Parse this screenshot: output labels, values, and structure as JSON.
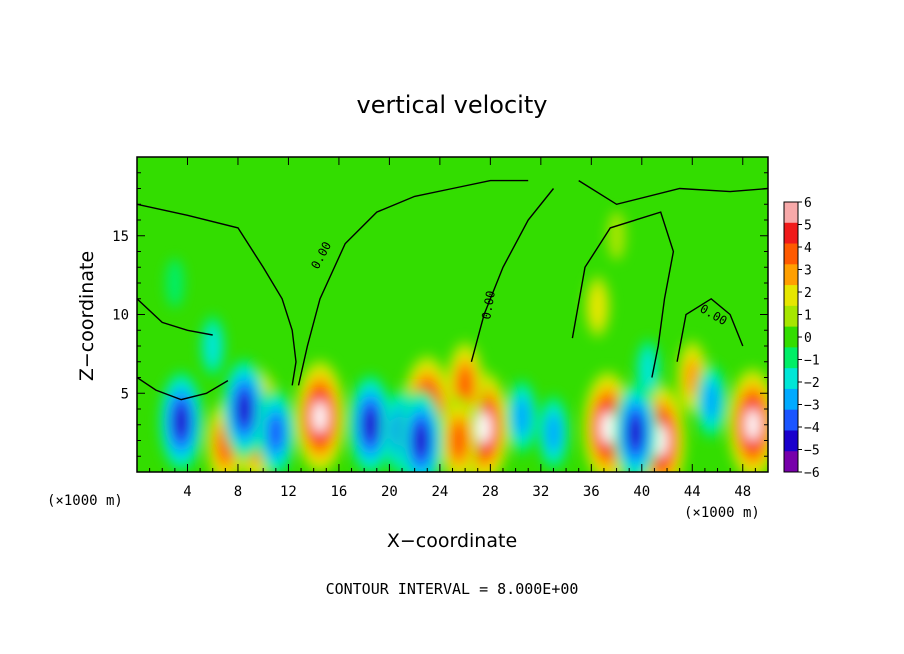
{
  "chart_data": {
    "type": "heatmap",
    "title": "vertical velocity",
    "xlabel": "X−coordinate",
    "ylabel": "Z−coordinate",
    "x_unit_left": "(×1000 m)",
    "x_unit_right": "(×1000 m)",
    "xlim": [
      0,
      50
    ],
    "ylim": [
      0,
      20
    ],
    "x_ticks": [
      "4",
      "8",
      "12",
      "16",
      "20",
      "24",
      "28",
      "32",
      "36",
      "40",
      "44",
      "48"
    ],
    "y_ticks": [
      "5",
      "10",
      "15"
    ],
    "contour_labels": [
      "0.00",
      "0.00",
      "0.00"
    ],
    "footnote": "CONTOUR INTERVAL = 8.000E+00",
    "colorbar": {
      "ticks": [
        "6",
        "5",
        "4",
        "3",
        "2",
        "1",
        "0",
        "−1",
        "−2",
        "−3",
        "−4",
        "−5",
        "−6"
      ],
      "min": -6,
      "max": 6,
      "colors": [
        "#f7a9a9",
        "#f01a1a",
        "#ff5a00",
        "#ff9f00",
        "#e6e600",
        "#a6e600",
        "#33dd00",
        "#00ee66",
        "#00e6d6",
        "#00aaff",
        "#1a55ff",
        "#1a00cc",
        "#7700aa"
      ]
    },
    "features": [
      {
        "x": 14.5,
        "z": 3.5,
        "w": 6
      },
      {
        "x": 9.5,
        "z": 3.0,
        "w": 6
      },
      {
        "x": 7.0,
        "z": 1.8,
        "w": 4
      },
      {
        "x": 23.0,
        "z": 3.8,
        "w": 6
      },
      {
        "x": 27.5,
        "z": 2.8,
        "w": 6
      },
      {
        "x": 26.0,
        "z": 5.5,
        "w": 4
      },
      {
        "x": 25.5,
        "z": 2.0,
        "w": 4
      },
      {
        "x": 37.3,
        "z": 2.8,
        "w": 6
      },
      {
        "x": 41.5,
        "z": 2.0,
        "w": 6
      },
      {
        "x": 48.8,
        "z": 3.0,
        "w": 6
      },
      {
        "x": 44.0,
        "z": 6.0,
        "w": 3
      },
      {
        "x": 36.5,
        "z": 10.5,
        "w": 2
      },
      {
        "x": 3.5,
        "z": 3.2,
        "w": -5
      },
      {
        "x": 8.5,
        "z": 4.0,
        "w": -5
      },
      {
        "x": 11.0,
        "z": 2.5,
        "w": -4
      },
      {
        "x": 18.5,
        "z": 3.0,
        "w": -5
      },
      {
        "x": 21.0,
        "z": 2.5,
        "w": -4
      },
      {
        "x": 22.5,
        "z": 2.0,
        "w": -5
      },
      {
        "x": 30.5,
        "z": 3.5,
        "w": -3
      },
      {
        "x": 33.0,
        "z": 2.5,
        "w": -3
      },
      {
        "x": 39.5,
        "z": 2.5,
        "w": -5
      },
      {
        "x": 45.5,
        "z": 4.5,
        "w": -3
      },
      {
        "x": 40.5,
        "z": 6.5,
        "w": -2
      },
      {
        "x": 6.0,
        "z": 8.0,
        "w": -2
      },
      {
        "x": 3.0,
        "z": 12.0,
        "w": -1
      },
      {
        "x": 38.0,
        "z": 15.0,
        "w": 1
      }
    ],
    "contours": [
      [
        [
          0,
          17
        ],
        [
          4,
          16.3
        ],
        [
          8,
          15.5
        ],
        [
          10,
          13
        ],
        [
          11.5,
          11
        ],
        [
          12.3,
          9
        ],
        [
          12.6,
          7
        ],
        [
          12.3,
          5.5
        ]
      ],
      [
        [
          12.8,
          5.5
        ],
        [
          13.5,
          8
        ],
        [
          14.5,
          11
        ],
        [
          16.5,
          14.5
        ],
        [
          19,
          16.5
        ],
        [
          22,
          17.5
        ],
        [
          25,
          18
        ],
        [
          28,
          18.5
        ],
        [
          31,
          18.5
        ]
      ],
      [
        [
          26.5,
          7
        ],
        [
          27.5,
          10
        ],
        [
          29,
          13
        ],
        [
          31,
          16
        ],
        [
          33,
          18
        ]
      ],
      [
        [
          34.5,
          8.5
        ],
        [
          35.5,
          13
        ],
        [
          37.5,
          15.5
        ],
        [
          41.5,
          16.5
        ],
        [
          42.5,
          14
        ],
        [
          41.8,
          11
        ],
        [
          41.3,
          8
        ],
        [
          40.8,
          6
        ]
      ],
      [
        [
          42.8,
          7
        ],
        [
          43.5,
          10
        ],
        [
          45.5,
          11
        ],
        [
          47,
          10
        ],
        [
          48,
          8
        ]
      ],
      [
        [
          0,
          6
        ],
        [
          1.5,
          5.2
        ],
        [
          3.5,
          4.6
        ],
        [
          5.5,
          5
        ],
        [
          7.2,
          5.8
        ]
      ],
      [
        [
          0,
          11
        ],
        [
          2,
          9.5
        ],
        [
          4,
          9
        ],
        [
          6,
          8.7
        ]
      ],
      [
        [
          35,
          18.5
        ],
        [
          38,
          17
        ],
        [
          43,
          18
        ],
        [
          47,
          17.8
        ],
        [
          50,
          18
        ]
      ]
    ]
  }
}
